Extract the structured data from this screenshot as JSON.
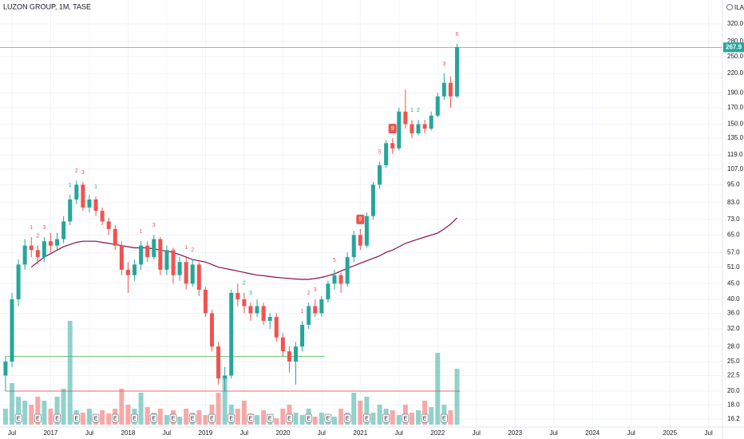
{
  "chart_data": {
    "type": "candlestick",
    "title": "LUZON GROUP, 1M, TASE",
    "currency": "ILA",
    "log_scale": true,
    "grid": true,
    "up_color": "#26a69a",
    "down_color": "#ef5350",
    "x": [
      "2016-06",
      "2016-07",
      "2016-08",
      "2016-09",
      "2016-10",
      "2016-11",
      "2016-12",
      "2017-01",
      "2017-02",
      "2017-03",
      "2017-04",
      "2017-05",
      "2017-06",
      "2017-07",
      "2017-08",
      "2017-09",
      "2017-10",
      "2017-11",
      "2017-12",
      "2018-01",
      "2018-02",
      "2018-03",
      "2018-04",
      "2018-05",
      "2018-06",
      "2018-07",
      "2018-08",
      "2018-09",
      "2018-10",
      "2018-11",
      "2018-12",
      "2019-01",
      "2019-02",
      "2019-03",
      "2019-04",
      "2019-05",
      "2019-06",
      "2019-07",
      "2019-08",
      "2019-09",
      "2019-10",
      "2019-11",
      "2019-12",
      "2020-01",
      "2020-02",
      "2020-03",
      "2020-04",
      "2020-05",
      "2020-06",
      "2020-07",
      "2020-08",
      "2020-09",
      "2020-10",
      "2020-11",
      "2020-12",
      "2021-01",
      "2021-02",
      "2021-03",
      "2021-04",
      "2021-05",
      "2021-06",
      "2021-07",
      "2021-08",
      "2021-09",
      "2021-10",
      "2021-11",
      "2021-12",
      "2022-01",
      "2022-02",
      "2022-03",
      "2022-04"
    ],
    "ohlc": [
      [
        22.5,
        26,
        20,
        25
      ],
      [
        25,
        42,
        24,
        40
      ],
      [
        40,
        54,
        38,
        52
      ],
      [
        52,
        63,
        50,
        60
      ],
      [
        60,
        64,
        55,
        58
      ],
      [
        58,
        60,
        52,
        55
      ],
      [
        55,
        64,
        53,
        62
      ],
      [
        62,
        66,
        57,
        60
      ],
      [
        60,
        66,
        58,
        63
      ],
      [
        63,
        75,
        61,
        72
      ],
      [
        72,
        88,
        70,
        85
      ],
      [
        85,
        98,
        82,
        95
      ],
      [
        95,
        97,
        78,
        80
      ],
      [
        80,
        88,
        77,
        85
      ],
      [
        85,
        87,
        75,
        78
      ],
      [
        78,
        80,
        70,
        72
      ],
      [
        72,
        74,
        65,
        68
      ],
      [
        68,
        70,
        58,
        60
      ],
      [
        60,
        62,
        48,
        50
      ],
      [
        50,
        53,
        42,
        48
      ],
      [
        48,
        54,
        46,
        52
      ],
      [
        52,
        62,
        50,
        60
      ],
      [
        60,
        62,
        53,
        55
      ],
      [
        55,
        65,
        54,
        63
      ],
      [
        63,
        64,
        48,
        50
      ],
      [
        50,
        60,
        48,
        58
      ],
      [
        58,
        59,
        45,
        48
      ],
      [
        48,
        55,
        46,
        53
      ],
      [
        53,
        55,
        43,
        45
      ],
      [
        45,
        54,
        44,
        52
      ],
      [
        52,
        53,
        41,
        43
      ],
      [
        43,
        44,
        35,
        36
      ],
      [
        36,
        37,
        27,
        28
      ],
      [
        28,
        29,
        21,
        22
      ],
      [
        22,
        24,
        20,
        22.5
      ],
      [
        22.5,
        43,
        22,
        42
      ],
      [
        42,
        45,
        38,
        40
      ],
      [
        40,
        42,
        36,
        38
      ],
      [
        38,
        39,
        34,
        36
      ],
      [
        36,
        40,
        35,
        38
      ],
      [
        38,
        39,
        33,
        34
      ],
      [
        34,
        36,
        32,
        35
      ],
      [
        35,
        36,
        29,
        30
      ],
      [
        30,
        31,
        26,
        27
      ],
      [
        27,
        28,
        23,
        25
      ],
      [
        25,
        29,
        21,
        28
      ],
      [
        28,
        34,
        27,
        33
      ],
      [
        33,
        39,
        32,
        38
      ],
      [
        38,
        40,
        35,
        36
      ],
      [
        36,
        41,
        35,
        40
      ],
      [
        40,
        46,
        39,
        45
      ],
      [
        45,
        50,
        43,
        48
      ],
      [
        48,
        49,
        42,
        45
      ],
      [
        45,
        57,
        44,
        55
      ],
      [
        55,
        67,
        53,
        65
      ],
      [
        65,
        68,
        58,
        60
      ],
      [
        60,
        77,
        59,
        75
      ],
      [
        75,
        97,
        73,
        95
      ],
      [
        95,
        113,
        92,
        110
      ],
      [
        110,
        133,
        108,
        130
      ],
      [
        130,
        135,
        120,
        125
      ],
      [
        125,
        170,
        123,
        165
      ],
      [
        165,
        195,
        145,
        150
      ],
      [
        150,
        155,
        135,
        140
      ],
      [
        140,
        155,
        138,
        150
      ],
      [
        150,
        155,
        140,
        145
      ],
      [
        145,
        165,
        143,
        160
      ],
      [
        160,
        190,
        158,
        185
      ],
      [
        185,
        220,
        180,
        205
      ],
      [
        205,
        215,
        170,
        185
      ],
      [
        185,
        275,
        183,
        267.9
      ]
    ],
    "volume": [
      20,
      52,
      35,
      30,
      25,
      35,
      30,
      20,
      35,
      45,
      130,
      18,
      15,
      20,
      12,
      18,
      14,
      20,
      45,
      25,
      20,
      40,
      22,
      15,
      20,
      12,
      18,
      10,
      20,
      15,
      18,
      12,
      25,
      40,
      60,
      25,
      20,
      30,
      14,
      12,
      18,
      10,
      8,
      20,
      25,
      15,
      12,
      20,
      10,
      15,
      12,
      10,
      20,
      15,
      40,
      30,
      35,
      15,
      25,
      20,
      18,
      12,
      25,
      15,
      18,
      30,
      22,
      90,
      25,
      18,
      70
    ],
    "volume_lim": [
      0,
      140
    ],
    "ma_color": "#880e4f",
    "ma_values": [
      null,
      null,
      null,
      null,
      51,
      53,
      55,
      56.5,
      58,
      59.5,
      60.5,
      61.5,
      62,
      62,
      62,
      61.5,
      61,
      60.5,
      60,
      59.5,
      59,
      59,
      59,
      58.5,
      58,
      57.5,
      57,
      56,
      55,
      54,
      53.5,
      53,
      52,
      51,
      50.5,
      50,
      49.5,
      49,
      48.5,
      48,
      47.8,
      47.5,
      47.2,
      47,
      46.8,
      46.6,
      46.5,
      46.5,
      46.8,
      47.2,
      47.8,
      48.5,
      49.5,
      50.5,
      51.5,
      52.5,
      53.5,
      54.5,
      55.5,
      57,
      58,
      59.5,
      61,
      62,
      63,
      64,
      65,
      66,
      68,
      70.5,
      74
    ],
    "levels": [
      {
        "value": 20,
        "from": "2016-06",
        "to": "2022-04",
        "color": "#f23645"
      },
      {
        "value": 26,
        "from": "2016-06",
        "to": "2020-07",
        "color": "#4caf50"
      }
    ],
    "earnings_label": "E",
    "earnings_dates": [
      "2016-08",
      "2016-11",
      "2017-02",
      "2017-05",
      "2017-08",
      "2017-11",
      "2018-02",
      "2018-05",
      "2018-08",
      "2018-11",
      "2019-02",
      "2019-05",
      "2019-08",
      "2019-11",
      "2020-02",
      "2020-05",
      "2020-08",
      "2020-11",
      "2021-02",
      "2021-05",
      "2021-08",
      "2021-11",
      "2022-02"
    ],
    "annotations": [
      {
        "x": "2016-10",
        "text": "1",
        "color": "#ef5350"
      },
      {
        "x": "2016-11",
        "text": "2",
        "color": "#ef5350"
      },
      {
        "x": "2016-12",
        "text": "3",
        "color": "#ef5350"
      },
      {
        "x": "2017-04",
        "text": "1",
        "color": "#26a69a"
      },
      {
        "x": "2017-05",
        "text": "2",
        "color": "#ef5350"
      },
      {
        "x": "2017-06",
        "text": "3",
        "color": "#ef5350"
      },
      {
        "x": "2017-08",
        "text": "1",
        "color": "#26a69a"
      },
      {
        "x": "2018-03",
        "text": "1",
        "color": "#ef5350"
      },
      {
        "x": "2018-05",
        "text": "3",
        "color": "#ef5350"
      },
      {
        "x": "2018-10",
        "text": "1",
        "color": "#ef5350"
      },
      {
        "x": "2018-11",
        "text": "2",
        "color": "#ef5350"
      },
      {
        "x": "2019-07",
        "text": "2",
        "color": "#26a69a"
      },
      {
        "x": "2019-08",
        "text": "3",
        "color": "#26a69a"
      },
      {
        "x": "2020-04",
        "text": "1",
        "color": "#ef5350"
      },
      {
        "x": "2020-05",
        "text": "2",
        "color": "#ef5350"
      },
      {
        "x": "2020-06",
        "text": "3",
        "color": "#ef5350"
      },
      {
        "x": "2020-09",
        "text": "5",
        "color": "#ef5350"
      },
      {
        "x": "2021-01",
        "text": "9",
        "color": "#ef5350",
        "box": true
      },
      {
        "x": "2021-04",
        "text": "5",
        "color": "#ef5350"
      },
      {
        "x": "2021-06",
        "text": "9",
        "color": "#ef5350",
        "box": true
      },
      {
        "x": "2021-09",
        "text": "1",
        "color": "#26a69a"
      },
      {
        "x": "2021-10",
        "text": "2",
        "color": "#26a69a"
      },
      {
        "x": "2022-02",
        "text": "3",
        "color": "#ef5350"
      },
      {
        "x": "2022-04",
        "text": "6",
        "color": "#ef5350"
      }
    ],
    "ylim": [
      14.8,
      383
    ],
    "yticks": [
      {
        "value": 16.2,
        "label": "16.2"
      },
      {
        "value": 18,
        "label": "18.0"
      },
      {
        "value": 20,
        "label": "20.0"
      },
      {
        "value": 22.5,
        "label": "22.5"
      },
      {
        "value": 25,
        "label": "25.0"
      },
      {
        "value": 28,
        "label": "28.0"
      },
      {
        "value": 32,
        "label": "32.0"
      },
      {
        "value": 36,
        "label": "36.0"
      },
      {
        "value": 40,
        "label": "40.0"
      },
      {
        "value": 45,
        "label": "45.0"
      },
      {
        "value": 51,
        "label": "51.0"
      },
      {
        "value": 57,
        "label": "57.0"
      },
      {
        "value": 65,
        "label": "65.0"
      },
      {
        "value": 73,
        "label": "73.0"
      },
      {
        "value": 83,
        "label": "83.0"
      },
      {
        "value": 95,
        "label": "95.0"
      },
      {
        "value": 107,
        "label": "107.0"
      },
      {
        "value": 119,
        "label": "119.0"
      },
      {
        "value": 135,
        "label": "135.0"
      },
      {
        "value": 150,
        "label": "150.0"
      },
      {
        "value": 170,
        "label": "170.0"
      },
      {
        "value": 190,
        "label": "190.0"
      },
      {
        "value": 220,
        "label": "220.0"
      },
      {
        "value": 250,
        "label": "250.0"
      },
      {
        "value": 280,
        "label": "280.0"
      },
      {
        "value": 320,
        "label": "320.0"
      }
    ],
    "xticks": [
      {
        "value": "2016-07",
        "label": "Jul"
      },
      {
        "value": "2017-01",
        "label": "2017"
      },
      {
        "value": "2017-07",
        "label": "Jul"
      },
      {
        "value": "2018-01",
        "label": "2018"
      },
      {
        "value": "2018-07",
        "label": "Jul"
      },
      {
        "value": "2019-01",
        "label": "2019"
      },
      {
        "value": "2019-07",
        "label": "Jul"
      },
      {
        "value": "2020-01",
        "label": "2020"
      },
      {
        "value": "2020-07",
        "label": "Jul"
      },
      {
        "value": "2021-01",
        "label": "2021"
      },
      {
        "value": "2021-07",
        "label": "Jul"
      },
      {
        "value": "2022-01",
        "label": "2022"
      },
      {
        "value": "2022-07",
        "label": "Jul"
      },
      {
        "value": "2023-01",
        "label": "2023"
      },
      {
        "value": "2023-07",
        "label": "Jul"
      },
      {
        "value": "2024-01",
        "label": "2024"
      },
      {
        "value": "2024-07",
        "label": "Jul"
      },
      {
        "value": "2025-01",
        "label": "2025"
      },
      {
        "value": "2025-07",
        "label": "Jul"
      }
    ]
  }
}
